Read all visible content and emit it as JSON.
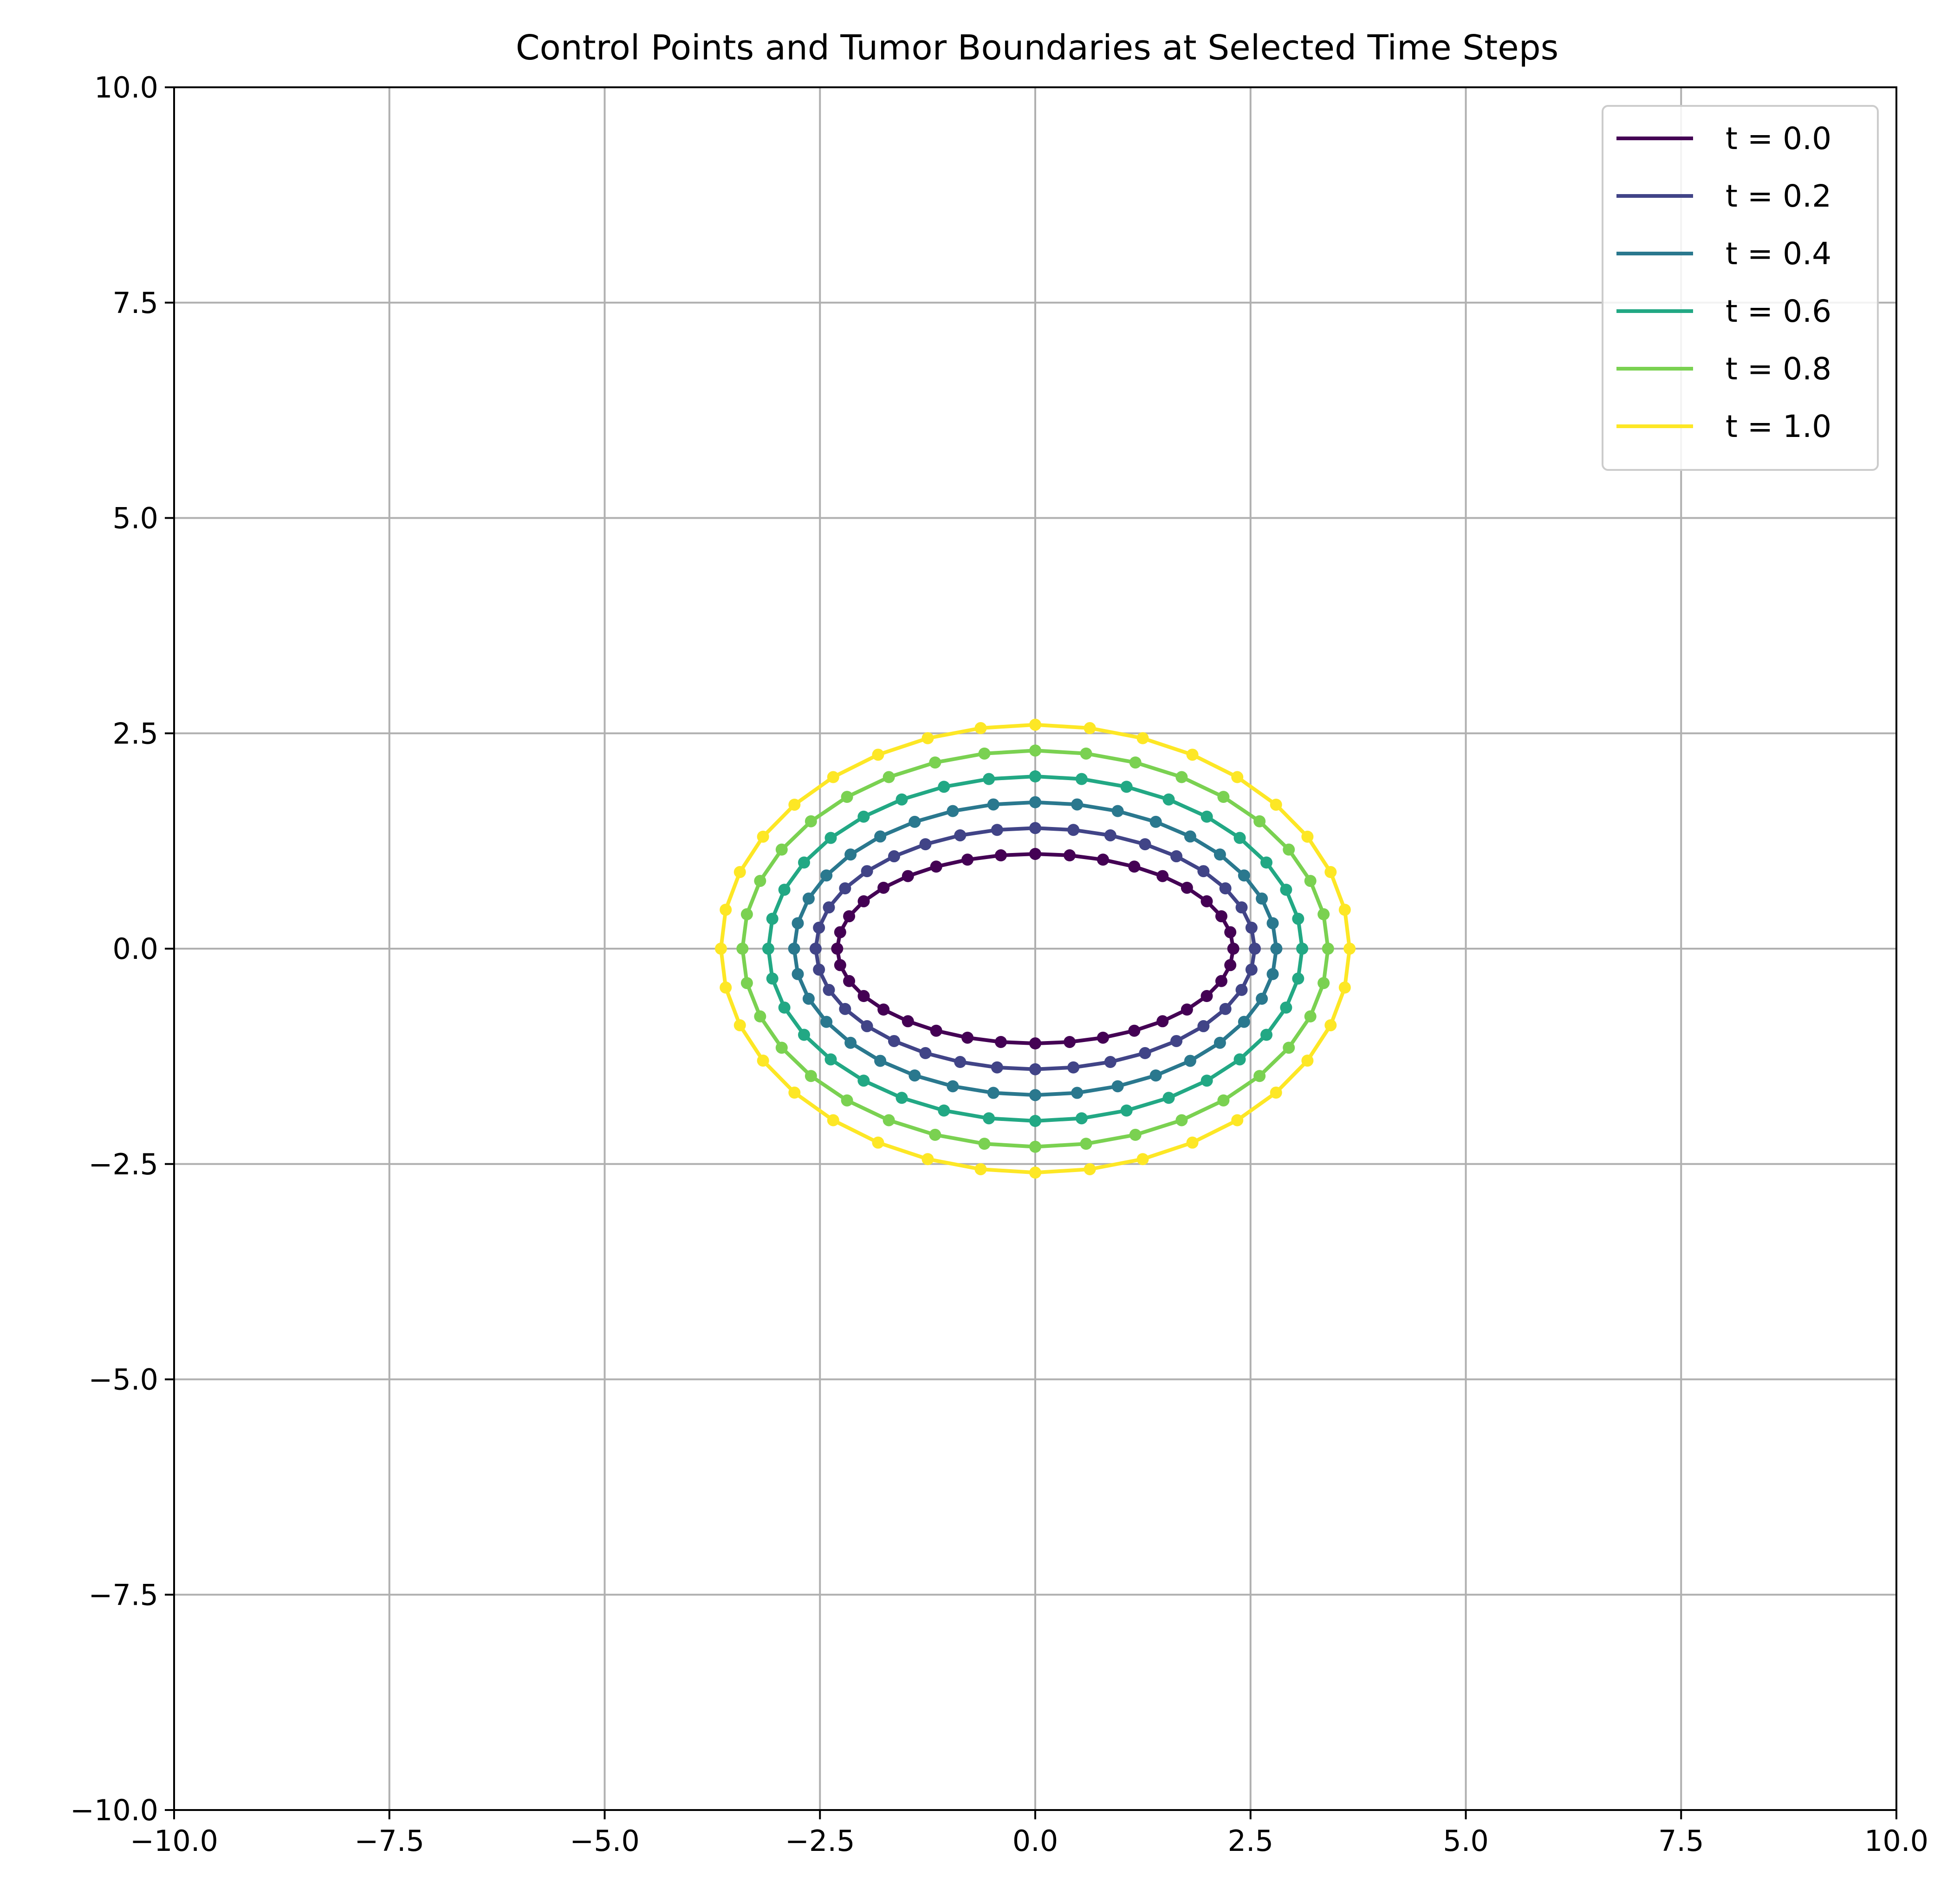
{
  "chart_data": {
    "type": "line",
    "title": "Control Points and Tumor Boundaries at Selected Time Steps",
    "xlabel": "",
    "ylabel": "",
    "xlim": [
      -10,
      10
    ],
    "ylim": [
      -10,
      10
    ],
    "xticks": [
      -10.0,
      -7.5,
      -5.0,
      -2.5,
      0.0,
      2.5,
      5.0,
      7.5,
      10.0
    ],
    "yticks": [
      -10.0,
      -7.5,
      -5.0,
      -2.5,
      0.0,
      2.5,
      5.0,
      7.5,
      10.0
    ],
    "xtick_labels": [
      "−10.0",
      "−7.5",
      "−5.0",
      "−2.5",
      "0.0",
      "2.5",
      "5.0",
      "7.5",
      "10.0"
    ],
    "ytick_labels": [
      "−10.0",
      "−7.5",
      "−5.0",
      "−2.5",
      "0.0",
      "2.5",
      "5.0",
      "7.5",
      "10.0"
    ],
    "grid": true,
    "legend_position": "top-right",
    "control_points_per_boundary": 36,
    "series": [
      {
        "name": "t = 0.0",
        "color": "#440154",
        "semi_axis_x": 2.3,
        "semi_axis_y": 1.1,
        "center": [
          0,
          0
        ]
      },
      {
        "name": "t = 0.2",
        "color": "#414487",
        "semi_axis_x": 2.55,
        "semi_axis_y": 1.4,
        "center": [
          0,
          0
        ]
      },
      {
        "name": "t = 0.4",
        "color": "#2a788e",
        "semi_axis_x": 2.8,
        "semi_axis_y": 1.7,
        "center": [
          0,
          0
        ]
      },
      {
        "name": "t = 0.6",
        "color": "#22a884",
        "semi_axis_x": 3.1,
        "semi_axis_y": 2.0,
        "center": [
          0,
          0
        ]
      },
      {
        "name": "t = 0.8",
        "color": "#7ad151",
        "semi_axis_x": 3.4,
        "semi_axis_y": 2.3,
        "center": [
          0,
          0
        ]
      },
      {
        "name": "t = 1.0",
        "color": "#fde725",
        "semi_axis_x": 3.65,
        "semi_axis_y": 2.6,
        "center": [
          0,
          0
        ]
      }
    ]
  }
}
